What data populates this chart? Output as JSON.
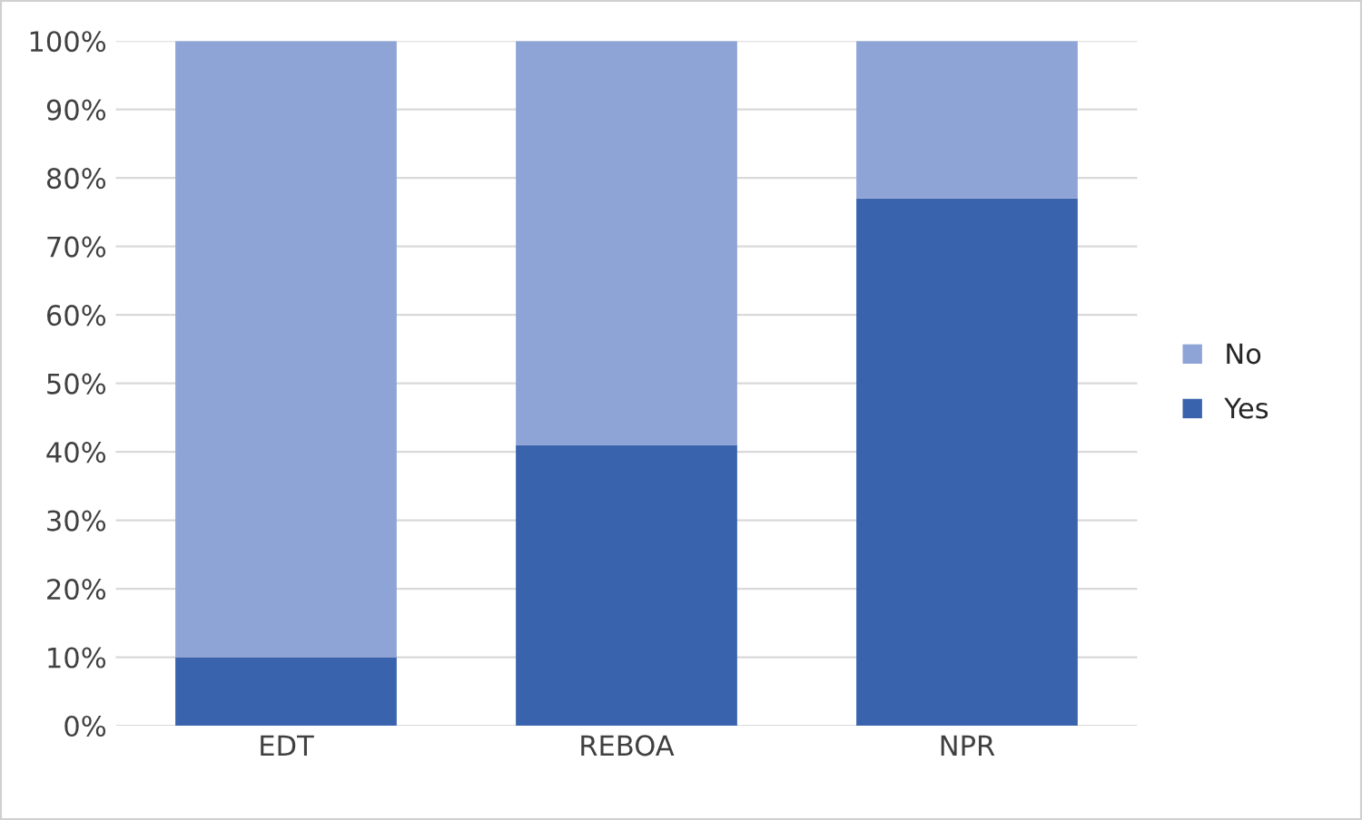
{
  "chart_data": {
    "type": "bar",
    "stacked": true,
    "categories": [
      "EDT",
      "REBOA",
      "NPR"
    ],
    "series": [
      {
        "name": "Yes",
        "color": "#3a63ad",
        "values": [
          10,
          41,
          77
        ]
      },
      {
        "name": "No",
        "color": "#8fa4d6",
        "values": [
          90,
          59,
          23
        ]
      }
    ],
    "ylim": [
      0,
      100
    ],
    "yticks": [
      {
        "value": 0,
        "label": "0%"
      },
      {
        "value": 10,
        "label": "10%"
      },
      {
        "value": 20,
        "label": "20%"
      },
      {
        "value": 30,
        "label": "30%"
      },
      {
        "value": 40,
        "label": "40%"
      },
      {
        "value": 50,
        "label": "50%"
      },
      {
        "value": 60,
        "label": "60%"
      },
      {
        "value": 70,
        "label": "70%"
      },
      {
        "value": 80,
        "label": "80%"
      },
      {
        "value": 90,
        "label": "90%"
      },
      {
        "value": 100,
        "label": "100%"
      }
    ],
    "grid": "y",
    "legend": "right"
  }
}
